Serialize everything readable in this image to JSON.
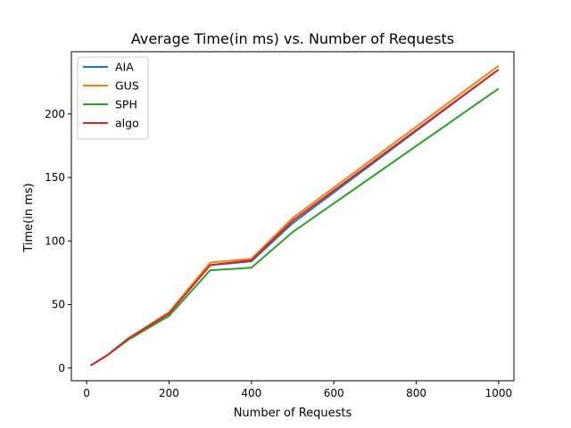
{
  "chart_data": {
    "type": "line",
    "title": "Average Time(in ms) vs. Number of Requests",
    "xlabel": "Number of Requests",
    "ylabel": "Time(in ms)",
    "xlim": [
      -37,
      1037
    ],
    "ylim": [
      -10,
      249
    ],
    "x_ticks": [
      0,
      200,
      400,
      600,
      800,
      1000
    ],
    "x_tick_labels": [
      "0",
      "200",
      "400",
      "600",
      "800",
      "1000"
    ],
    "y_ticks": [
      0,
      50,
      100,
      150,
      200
    ],
    "y_tick_labels": [
      "0",
      "50",
      "100",
      "150",
      "200"
    ],
    "grid": false,
    "legend_position": "top-left",
    "x": [
      10,
      50,
      100,
      200,
      300,
      400,
      500,
      1000
    ],
    "series": [
      {
        "name": "AIA",
        "color": "#1f77b4",
        "values": [
          2,
          10,
          23,
          43,
          81,
          84,
          114,
          235
        ]
      },
      {
        "name": "GUS",
        "color": "#ff7f0e",
        "values": [
          2,
          10,
          23,
          44,
          83,
          86,
          118,
          238
        ]
      },
      {
        "name": "SPH",
        "color": "#2ca02c",
        "values": [
          2,
          10,
          22,
          41,
          77,
          79,
          107,
          220
        ]
      },
      {
        "name": "algo",
        "color": "#d62728",
        "values": [
          2,
          10,
          23,
          43,
          81,
          85,
          116,
          235
        ]
      }
    ]
  }
}
